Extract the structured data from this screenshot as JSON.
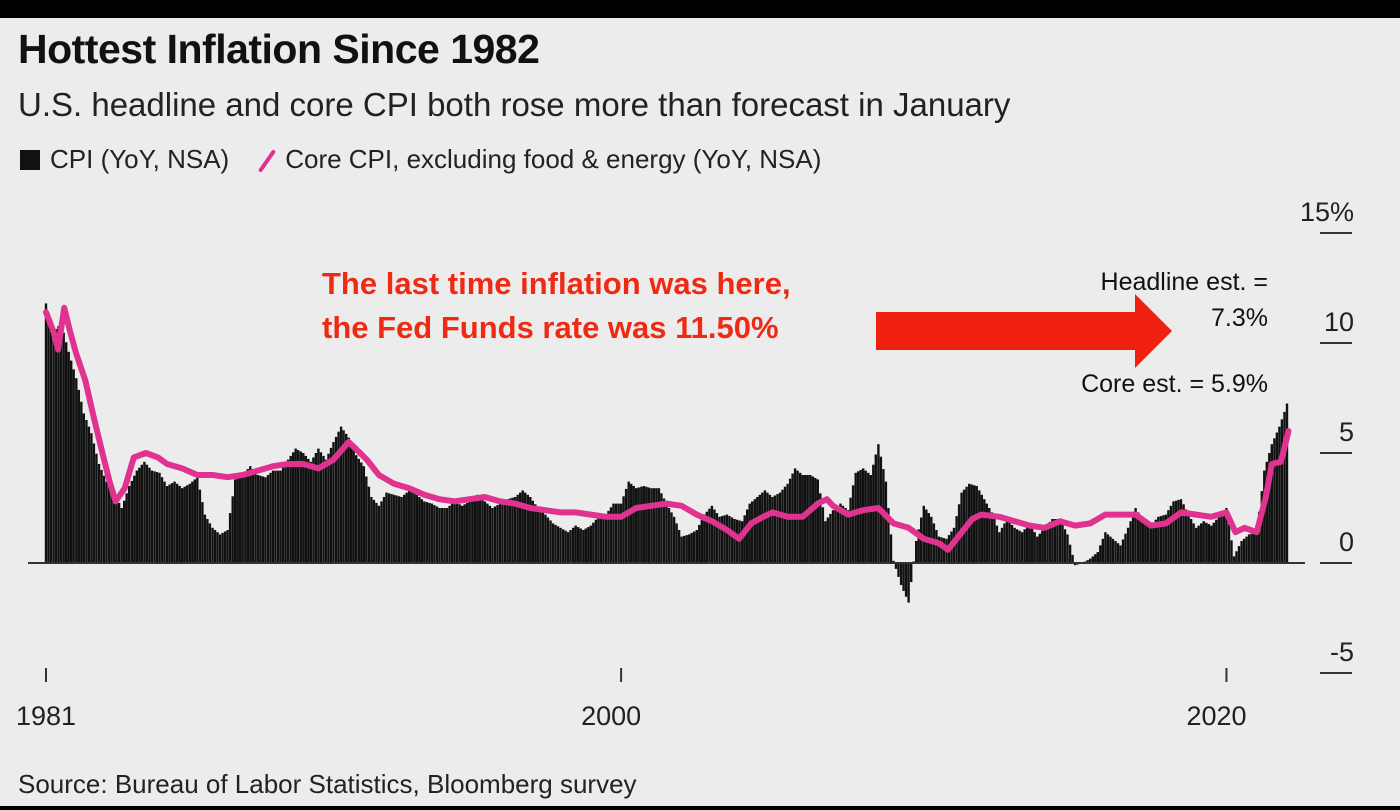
{
  "colors": {
    "bar": "#111111",
    "core_line": "#e0338f",
    "arrow": "#f02010",
    "note_text": "#ee2a14"
  },
  "chart_data": {
    "type": "bar",
    "title": "Hottest Inflation Since 1982",
    "subtitle": "U.S. headline and core CPI both rose more than forecast in January",
    "ylabel": "",
    "xlabel": "",
    "ylim": [
      -5,
      15
    ],
    "xlim": [
      1981,
      2022.1
    ],
    "y_ticks": [
      "-5",
      "0",
      "5",
      "10",
      "15%"
    ],
    "x_ticks": [
      {
        "year": 1981,
        "label": "1981"
      },
      {
        "year": 2000,
        "label": "2000"
      },
      {
        "year": 2020,
        "label": "2020"
      }
    ],
    "grid": false,
    "legend_position": "top-left",
    "series": [
      {
        "name": "CPI (YoY, NSA)",
        "type": "bar",
        "points": [
          [
            1981.0,
            11.8
          ],
          [
            1981.25,
            10.5
          ],
          [
            1981.5,
            10.9
          ],
          [
            1981.75,
            9.6
          ],
          [
            1982.0,
            8.4
          ],
          [
            1982.25,
            6.8
          ],
          [
            1982.5,
            5.9
          ],
          [
            1982.75,
            4.5
          ],
          [
            1983.0,
            3.7
          ],
          [
            1983.25,
            3.2
          ],
          [
            1983.5,
            2.5
          ],
          [
            1983.75,
            3.5
          ],
          [
            1984.0,
            4.2
          ],
          [
            1984.25,
            4.6
          ],
          [
            1984.5,
            4.2
          ],
          [
            1984.75,
            4.1
          ],
          [
            1985.0,
            3.5
          ],
          [
            1985.25,
            3.7
          ],
          [
            1985.5,
            3.4
          ],
          [
            1985.75,
            3.6
          ],
          [
            1986.0,
            3.9
          ],
          [
            1986.25,
            2.2
          ],
          [
            1986.5,
            1.6
          ],
          [
            1986.75,
            1.3
          ],
          [
            1987.0,
            1.5
          ],
          [
            1987.25,
            3.8
          ],
          [
            1987.5,
            4.0
          ],
          [
            1987.75,
            4.4
          ],
          [
            1988.0,
            4.0
          ],
          [
            1988.25,
            3.9
          ],
          [
            1988.5,
            4.2
          ],
          [
            1988.75,
            4.2
          ],
          [
            1989.0,
            4.7
          ],
          [
            1989.25,
            5.2
          ],
          [
            1989.5,
            5.0
          ],
          [
            1989.75,
            4.6
          ],
          [
            1990.0,
            5.2
          ],
          [
            1990.25,
            4.7
          ],
          [
            1990.5,
            5.5
          ],
          [
            1990.75,
            6.2
          ],
          [
            1991.0,
            5.7
          ],
          [
            1991.25,
            4.9
          ],
          [
            1991.5,
            4.4
          ],
          [
            1991.75,
            3.0
          ],
          [
            1992.0,
            2.6
          ],
          [
            1992.25,
            3.2
          ],
          [
            1992.5,
            3.1
          ],
          [
            1992.75,
            3.0
          ],
          [
            1993.0,
            3.3
          ],
          [
            1993.25,
            3.1
          ],
          [
            1993.5,
            2.8
          ],
          [
            1993.75,
            2.7
          ],
          [
            1994.0,
            2.5
          ],
          [
            1994.25,
            2.5
          ],
          [
            1994.5,
            2.8
          ],
          [
            1994.75,
            2.6
          ],
          [
            1995.0,
            2.8
          ],
          [
            1995.25,
            3.1
          ],
          [
            1995.5,
            2.8
          ],
          [
            1995.75,
            2.5
          ],
          [
            1996.0,
            2.7
          ],
          [
            1996.25,
            2.9
          ],
          [
            1996.5,
            3.0
          ],
          [
            1996.75,
            3.3
          ],
          [
            1997.0,
            3.0
          ],
          [
            1997.25,
            2.5
          ],
          [
            1997.5,
            2.2
          ],
          [
            1997.75,
            1.8
          ],
          [
            1998.0,
            1.6
          ],
          [
            1998.25,
            1.4
          ],
          [
            1998.5,
            1.7
          ],
          [
            1998.75,
            1.5
          ],
          [
            1999.0,
            1.7
          ],
          [
            1999.25,
            2.1
          ],
          [
            1999.5,
            2.2
          ],
          [
            1999.75,
            2.7
          ],
          [
            2000.0,
            2.7
          ],
          [
            2000.25,
            3.7
          ],
          [
            2000.5,
            3.4
          ],
          [
            2000.75,
            3.5
          ],
          [
            2001.0,
            3.4
          ],
          [
            2001.25,
            3.4
          ],
          [
            2001.5,
            2.7
          ],
          [
            2001.75,
            2.1
          ],
          [
            2002.0,
            1.2
          ],
          [
            2002.25,
            1.3
          ],
          [
            2002.5,
            1.5
          ],
          [
            2002.75,
            2.2
          ],
          [
            2003.0,
            2.6
          ],
          [
            2003.25,
            2.1
          ],
          [
            2003.5,
            2.2
          ],
          [
            2003.75,
            2.0
          ],
          [
            2004.0,
            1.9
          ],
          [
            2004.25,
            2.7
          ],
          [
            2004.5,
            3.0
          ],
          [
            2004.75,
            3.3
          ],
          [
            2005.0,
            3.0
          ],
          [
            2005.25,
            3.2
          ],
          [
            2005.5,
            3.6
          ],
          [
            2005.75,
            4.3
          ],
          [
            2006.0,
            4.0
          ],
          [
            2006.25,
            4.0
          ],
          [
            2006.5,
            3.8
          ],
          [
            2006.75,
            1.9
          ],
          [
            2007.0,
            2.4
          ],
          [
            2007.25,
            2.7
          ],
          [
            2007.5,
            2.4
          ],
          [
            2007.75,
            4.1
          ],
          [
            2008.0,
            4.3
          ],
          [
            2008.25,
            4.0
          ],
          [
            2008.5,
            5.4
          ],
          [
            2008.75,
            3.7
          ],
          [
            2009.0,
            0.1
          ],
          [
            2009.25,
            -1.0
          ],
          [
            2009.5,
            -1.8
          ],
          [
            2009.75,
            1.0
          ],
          [
            2010.0,
            2.6
          ],
          [
            2010.25,
            2.1
          ],
          [
            2010.5,
            1.2
          ],
          [
            2010.75,
            1.1
          ],
          [
            2011.0,
            1.6
          ],
          [
            2011.25,
            3.2
          ],
          [
            2011.5,
            3.6
          ],
          [
            2011.75,
            3.5
          ],
          [
            2012.0,
            2.9
          ],
          [
            2012.25,
            2.3
          ],
          [
            2012.5,
            1.4
          ],
          [
            2012.75,
            2.0
          ],
          [
            2013.0,
            1.6
          ],
          [
            2013.25,
            1.4
          ],
          [
            2013.5,
            1.8
          ],
          [
            2013.75,
            1.2
          ],
          [
            2014.0,
            1.6
          ],
          [
            2014.25,
            2.0
          ],
          [
            2014.5,
            2.0
          ],
          [
            2014.75,
            1.3
          ],
          [
            2015.0,
            -0.1
          ],
          [
            2015.25,
            0.0
          ],
          [
            2015.5,
            0.2
          ],
          [
            2015.75,
            0.5
          ],
          [
            2016.0,
            1.4
          ],
          [
            2016.25,
            1.1
          ],
          [
            2016.5,
            0.8
          ],
          [
            2016.75,
            1.6
          ],
          [
            2017.0,
            2.5
          ],
          [
            2017.25,
            1.9
          ],
          [
            2017.5,
            1.7
          ],
          [
            2017.75,
            2.1
          ],
          [
            2018.0,
            2.2
          ],
          [
            2018.25,
            2.8
          ],
          [
            2018.5,
            2.9
          ],
          [
            2018.75,
            2.2
          ],
          [
            2019.0,
            1.6
          ],
          [
            2019.25,
            1.9
          ],
          [
            2019.5,
            1.7
          ],
          [
            2019.75,
            2.1
          ],
          [
            2020.0,
            2.5
          ],
          [
            2020.25,
            0.3
          ],
          [
            2020.5,
            1.0
          ],
          [
            2020.75,
            1.3
          ],
          [
            2021.0,
            1.4
          ],
          [
            2021.25,
            4.2
          ],
          [
            2021.5,
            5.4
          ],
          [
            2021.75,
            6.2
          ],
          [
            2021.95,
            7.0
          ],
          [
            2022.05,
            7.5
          ]
        ]
      },
      {
        "name": "Core CPI, excluding food & energy (YoY, NSA)",
        "type": "line",
        "points": [
          [
            1981.0,
            11.4
          ],
          [
            1981.25,
            10.5
          ],
          [
            1981.4,
            9.7
          ],
          [
            1981.6,
            11.6
          ],
          [
            1981.8,
            10.5
          ],
          [
            1982.0,
            9.5
          ],
          [
            1982.3,
            8.3
          ],
          [
            1982.6,
            6.5
          ],
          [
            1982.9,
            4.8
          ],
          [
            1983.1,
            3.7
          ],
          [
            1983.3,
            2.8
          ],
          [
            1983.6,
            3.4
          ],
          [
            1983.9,
            4.8
          ],
          [
            1984.3,
            5.0
          ],
          [
            1984.7,
            4.8
          ],
          [
            1985.0,
            4.5
          ],
          [
            1985.5,
            4.3
          ],
          [
            1986.0,
            4.0
          ],
          [
            1986.5,
            4.0
          ],
          [
            1987.0,
            3.9
          ],
          [
            1987.5,
            4.0
          ],
          [
            1988.0,
            4.2
          ],
          [
            1988.5,
            4.4
          ],
          [
            1989.0,
            4.5
          ],
          [
            1989.5,
            4.5
          ],
          [
            1990.0,
            4.3
          ],
          [
            1990.5,
            4.7
          ],
          [
            1991.0,
            5.5
          ],
          [
            1991.3,
            5.1
          ],
          [
            1991.6,
            4.7
          ],
          [
            1992.0,
            4.0
          ],
          [
            1992.5,
            3.6
          ],
          [
            1993.0,
            3.4
          ],
          [
            1993.5,
            3.1
          ],
          [
            1994.0,
            2.9
          ],
          [
            1994.5,
            2.8
          ],
          [
            1995.0,
            2.9
          ],
          [
            1995.5,
            3.0
          ],
          [
            1996.0,
            2.8
          ],
          [
            1996.5,
            2.7
          ],
          [
            1997.0,
            2.5
          ],
          [
            1997.5,
            2.4
          ],
          [
            1998.0,
            2.3
          ],
          [
            1998.5,
            2.3
          ],
          [
            1999.0,
            2.2
          ],
          [
            1999.5,
            2.1
          ],
          [
            2000.0,
            2.1
          ],
          [
            2000.5,
            2.5
          ],
          [
            2001.0,
            2.6
          ],
          [
            2001.5,
            2.7
          ],
          [
            2002.0,
            2.6
          ],
          [
            2002.5,
            2.2
          ],
          [
            2003.0,
            1.9
          ],
          [
            2003.5,
            1.5
          ],
          [
            2003.9,
            1.1
          ],
          [
            2004.3,
            1.8
          ],
          [
            2004.7,
            2.1
          ],
          [
            2005.0,
            2.3
          ],
          [
            2005.5,
            2.1
          ],
          [
            2006.0,
            2.1
          ],
          [
            2006.5,
            2.7
          ],
          [
            2006.8,
            2.9
          ],
          [
            2007.0,
            2.6
          ],
          [
            2007.5,
            2.2
          ],
          [
            2008.0,
            2.4
          ],
          [
            2008.5,
            2.5
          ],
          [
            2009.0,
            1.8
          ],
          [
            2009.5,
            1.6
          ],
          [
            2010.0,
            1.1
          ],
          [
            2010.5,
            0.9
          ],
          [
            2010.8,
            0.6
          ],
          [
            2011.2,
            1.3
          ],
          [
            2011.6,
            2.0
          ],
          [
            2011.9,
            2.2
          ],
          [
            2012.5,
            2.1
          ],
          [
            2013.0,
            1.9
          ],
          [
            2013.5,
            1.7
          ],
          [
            2014.0,
            1.6
          ],
          [
            2014.5,
            1.9
          ],
          [
            2015.0,
            1.7
          ],
          [
            2015.5,
            1.8
          ],
          [
            2016.0,
            2.2
          ],
          [
            2016.5,
            2.2
          ],
          [
            2017.0,
            2.2
          ],
          [
            2017.5,
            1.7
          ],
          [
            2018.0,
            1.8
          ],
          [
            2018.5,
            2.3
          ],
          [
            2019.0,
            2.2
          ],
          [
            2019.5,
            2.1
          ],
          [
            2020.0,
            2.3
          ],
          [
            2020.3,
            1.4
          ],
          [
            2020.6,
            1.6
          ],
          [
            2021.0,
            1.4
          ],
          [
            2021.3,
            3.0
          ],
          [
            2021.5,
            4.5
          ],
          [
            2021.8,
            4.6
          ],
          [
            2022.05,
            6.0
          ]
        ]
      }
    ],
    "annotations": {
      "red_note_line1": "The last time inflation was here,",
      "red_note_line2": "the Fed Funds rate was 11.50%",
      "headline_est_line1": "Headline est. =",
      "headline_est_line2": "7.3%",
      "core_est": "Core est. = 5.9%"
    }
  },
  "legend": {
    "cpi_label": "CPI (YoY, NSA)",
    "core_label": "Core CPI, excluding food & energy (YoY, NSA)"
  },
  "source": "Source: Bureau of Labor Statistics, Bloomberg survey"
}
